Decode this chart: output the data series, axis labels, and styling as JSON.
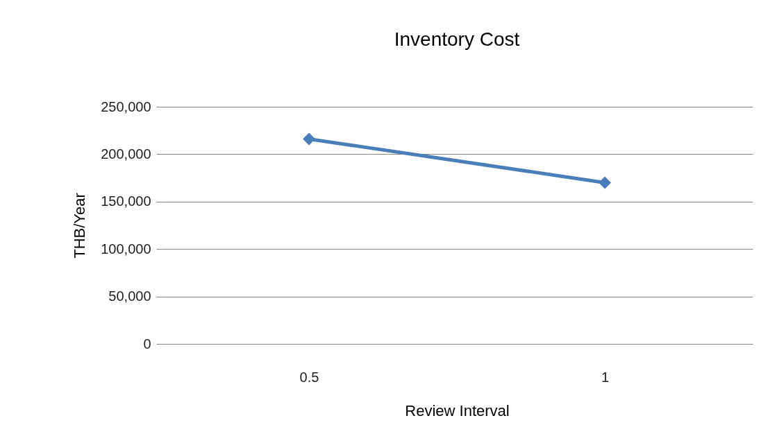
{
  "chart_data": {
    "type": "line",
    "title": "Inventory Cost",
    "xlabel": "Review Interval",
    "ylabel": "THB/Year",
    "categories": [
      "0.5",
      "1"
    ],
    "series": [
      {
        "color": "#4a7ebb",
        "values": [
          216000,
          170000
        ]
      }
    ],
    "ylim": [
      0,
      250000
    ],
    "yticks": [
      {
        "value": 0,
        "label": "0"
      },
      {
        "value": 50000,
        "label": "50,000"
      },
      {
        "value": 100000,
        "label": "100,000"
      },
      {
        "value": 150000,
        "label": "150,000"
      },
      {
        "value": 200000,
        "label": "200,000"
      },
      {
        "value": 250000,
        "label": "250,000"
      }
    ],
    "grid": "y",
    "marker": "diamond",
    "line_style": "solid",
    "legend": false
  }
}
